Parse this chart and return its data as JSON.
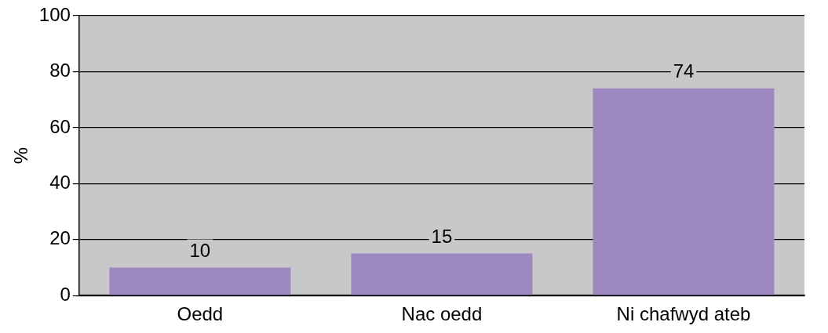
{
  "chart_data": {
    "type": "bar",
    "ylabel": "%",
    "categories": [
      "Oedd",
      "Nac oedd",
      "Ni chafwyd ateb"
    ],
    "values": [
      10,
      15,
      74
    ],
    "color": "#9e88c0",
    "ylim": [
      0,
      100
    ],
    "yticks": [
      0,
      20,
      40,
      60,
      80,
      100
    ],
    "grid": "y",
    "data_labels": true,
    "legend": false
  }
}
